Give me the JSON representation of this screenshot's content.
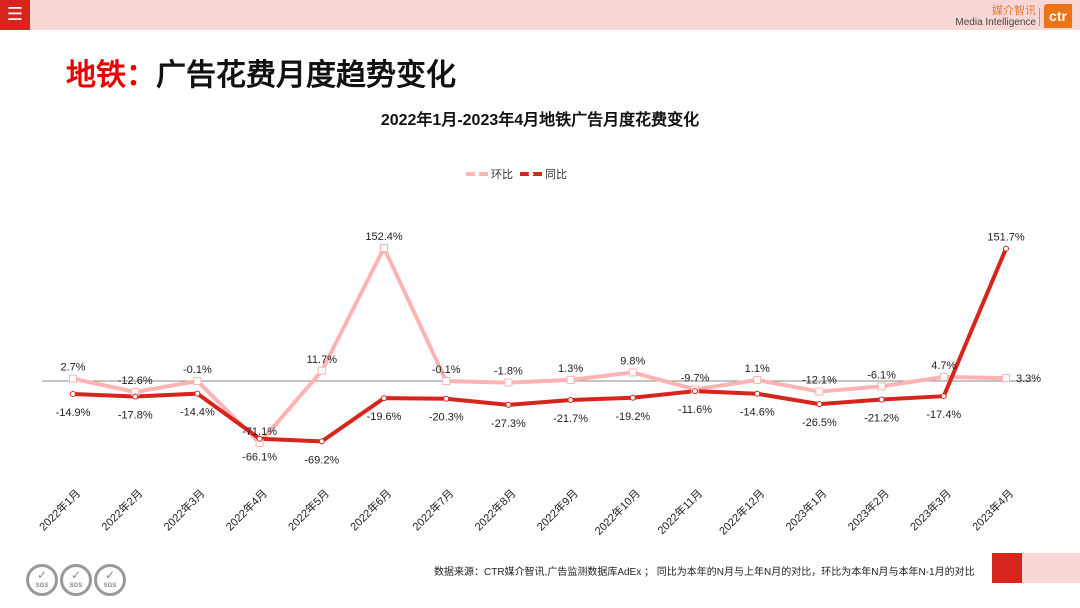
{
  "header": {
    "menu_icon": "☰",
    "brand_cn": "媒介智讯",
    "brand_en": "Media Intelligence",
    "logo": "ctr"
  },
  "page_title": {
    "prefix": "地铁：",
    "main": "广告花费月度趋势变化"
  },
  "footer": {
    "source": "数据来源：CTR媒介智讯,广告监测数据库AdEx ； 同比为本年的N月与上年N月的对比，环比为本年N月与本年N-1月的对比",
    "badge": "SGS"
  },
  "colors": {
    "hb": "#ffb3b3",
    "tb": "#d7241c"
  },
  "chart_data": {
    "type": "line",
    "title": "2022年1月-2023年4月地铁广告月度花费变化",
    "categories": [
      "2022年1月",
      "2022年2月",
      "2022年3月",
      "2022年4月",
      "2022年5月",
      "2022年6月",
      "2022年7月",
      "2022年8月",
      "2022年9月",
      "2022年10月",
      "2022年11月",
      "2022年12月",
      "2023年1月",
      "2023年2月",
      "2023年3月",
      "2023年4月"
    ],
    "series": [
      {
        "name": "环比",
        "values": [
          2.7,
          -12.6,
          -0.1,
          -71.1,
          11.7,
          152.4,
          -0.1,
          -1.8,
          1.3,
          9.8,
          -9.7,
          1.1,
          -12.1,
          -6.1,
          4.7,
          3.3
        ]
      },
      {
        "name": "同比",
        "values": [
          -14.9,
          -17.8,
          -14.4,
          -66.1,
          -69.2,
          -19.6,
          -20.3,
          -27.3,
          -21.7,
          -19.2,
          -11.6,
          -14.6,
          -26.5,
          -21.2,
          -17.4,
          151.7
        ]
      }
    ],
    "legend": "top-center",
    "grid": false,
    "unit": "%"
  }
}
